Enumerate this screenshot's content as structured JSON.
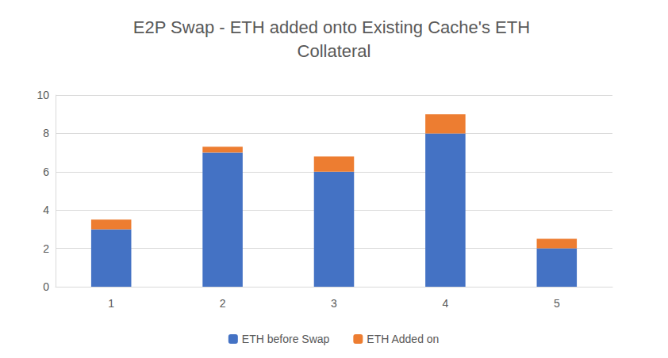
{
  "chart_data": {
    "type": "bar",
    "title": "E2P Swap - ETH added onto Existing Cache's ETH Collateral",
    "categories": [
      "1",
      "2",
      "3",
      "4",
      "5"
    ],
    "series": [
      {
        "name": "ETH before Swap",
        "color": "#4472c4",
        "values": [
          3,
          7,
          6,
          8,
          2
        ]
      },
      {
        "name": "ETH Added on",
        "color": "#ed7d31",
        "values": [
          0.5,
          0.3,
          0.8,
          1.0,
          0.5
        ]
      }
    ],
    "stacked": true,
    "ylim": [
      0,
      10
    ],
    "yticks": [
      0,
      2,
      4,
      6,
      8,
      10
    ],
    "grid": true,
    "legend": "bottom"
  }
}
